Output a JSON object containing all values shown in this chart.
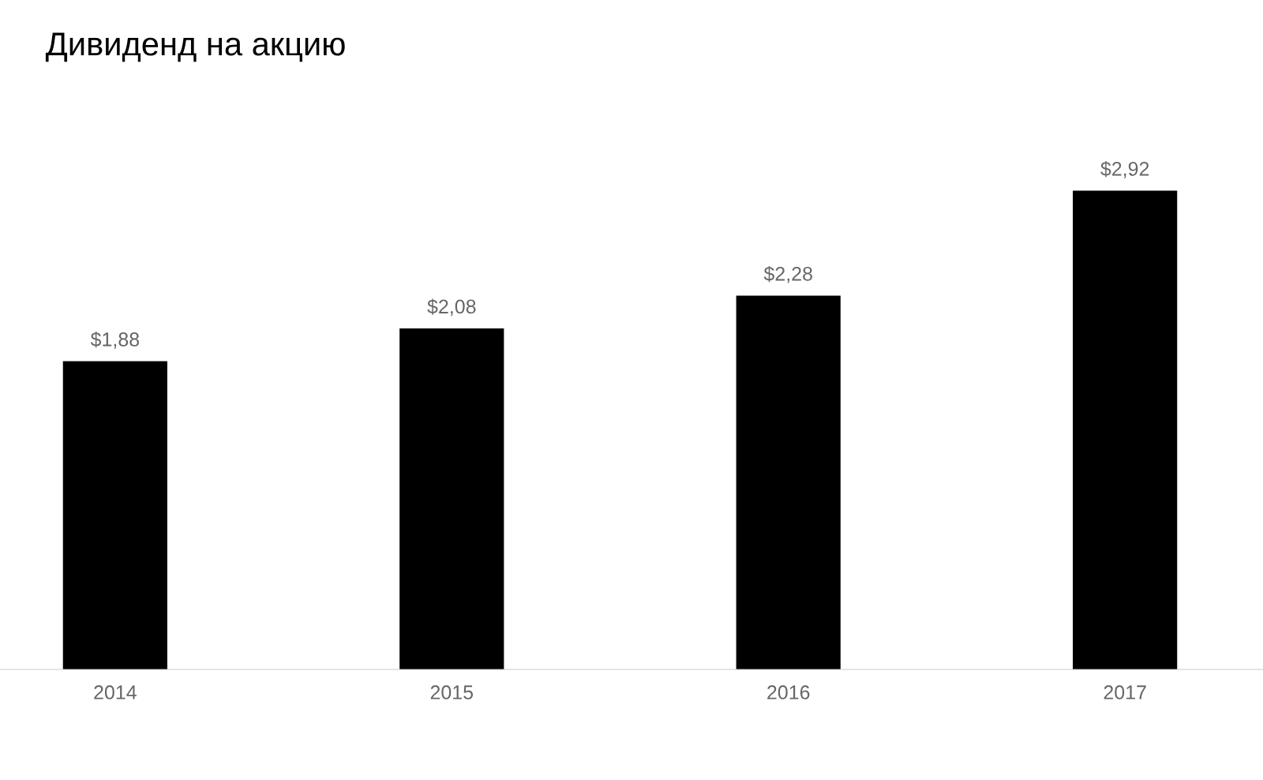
{
  "chart_data": {
    "type": "bar",
    "title": "Дивиденд на акцию",
    "categories": [
      "2014",
      "2015",
      "2016",
      "2017"
    ],
    "values": [
      1.88,
      2.08,
      2.28,
      2.92
    ],
    "value_labels": [
      "$1,88",
      "$2,08",
      "$2,28",
      "$2,92"
    ],
    "color": "#000000",
    "grid": false,
    "legend": false
  }
}
